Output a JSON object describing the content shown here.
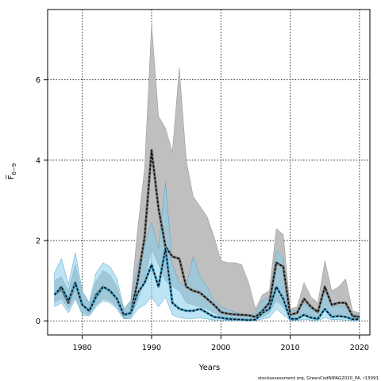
{
  "chart_data": {
    "type": "line",
    "title": "",
    "xlabel": "Years",
    "ylabel": "F̅ 6−9",
    "xlim": [
      1975,
      2021.5
    ],
    "ylim": [
      -0.35,
      7.75
    ],
    "x_ticks": [
      1980,
      1990,
      2000,
      2010,
      2020
    ],
    "y_ticks": [
      0,
      2,
      4,
      6
    ],
    "grid": true,
    "legend": "none",
    "credit": "stockassessment.org, GreenCodNIPAG2020_PA, r13091",
    "colors": {
      "grey_band": "#bfbfbf",
      "grey_band_stroke": "#909090",
      "blue_band": "#87ceeb",
      "blue_band_stroke": "#4fa3c8",
      "grey_line": "#000000",
      "blue_line": "#000000",
      "grid": "#000000"
    },
    "series": [
      {
        "x": [
          1976,
          1977,
          1978,
          1979,
          1980,
          1981,
          1982,
          1983,
          1984,
          1985,
          1986,
          1987,
          1988,
          1989,
          1990,
          1991,
          1992,
          1993,
          1994,
          1995,
          1996,
          1997,
          1998,
          1999,
          2000,
          2001,
          2002,
          2003,
          2004,
          2005,
          2006,
          2007,
          2008,
          2009,
          2010,
          2011,
          2012,
          2013,
          2014,
          2015,
          2016,
          2017,
          2018,
          2019,
          2020
        ],
        "y": [
          0.65,
          0.8,
          0.45,
          0.95,
          0.4,
          0.25,
          0.65,
          0.85,
          0.75,
          0.55,
          0.15,
          0.2,
          1.0,
          2.1,
          4.25,
          2.8,
          1.85,
          1.6,
          1.55,
          0.85,
          0.75,
          0.7,
          0.55,
          0.4,
          0.22,
          0.18,
          0.16,
          0.15,
          0.14,
          0.1,
          0.25,
          0.45,
          1.45,
          1.35,
          0.15,
          0.2,
          0.55,
          0.35,
          0.22,
          0.85,
          0.4,
          0.45,
          0.45,
          0.12,
          0.1
        ],
        "lower": [
          0.45,
          0.55,
          0.3,
          0.6,
          0.2,
          0.15,
          0.4,
          0.55,
          0.5,
          0.35,
          0.05,
          0.1,
          0.5,
          1.0,
          1.8,
          1.4,
          1.0,
          0.85,
          0.75,
          0.45,
          0.4,
          0.35,
          0.3,
          0.2,
          0.1,
          0.08,
          0.07,
          0.06,
          0.05,
          0.04,
          0.1,
          0.2,
          0.5,
          0.35,
          0.05,
          0.06,
          0.2,
          0.12,
          0.08,
          0.4,
          0.15,
          0.15,
          0.15,
          0.05,
          0.04
        ],
        "upper": [
          1.0,
          1.1,
          0.75,
          1.4,
          0.7,
          0.45,
          1.0,
          1.25,
          1.15,
          0.85,
          0.3,
          0.5,
          2.3,
          3.8,
          7.4,
          5.1,
          4.8,
          4.2,
          6.3,
          4.0,
          3.1,
          2.85,
          2.6,
          2.1,
          1.5,
          1.45,
          1.45,
          1.4,
          0.95,
          0.3,
          0.65,
          0.75,
          2.3,
          2.15,
          0.3,
          0.35,
          0.95,
          0.6,
          0.45,
          1.5,
          0.75,
          0.85,
          1.05,
          0.25,
          0.2
        ]
      },
      {
        "x": [
          1976,
          1977,
          1978,
          1979,
          1980,
          1981,
          1982,
          1983,
          1984,
          1985,
          1986,
          1987,
          1988,
          1989,
          1990,
          1991,
          1992,
          1993,
          1994,
          1995,
          1996,
          1997,
          1998,
          1999,
          2000,
          2001,
          2002,
          2003,
          2004,
          2005,
          2006,
          2007,
          2008,
          2009,
          2010,
          2011,
          2012,
          2013,
          2014,
          2015,
          2016,
          2017,
          2018,
          2019,
          2020
        ],
        "y": [
          0.65,
          0.85,
          0.5,
          0.95,
          0.4,
          0.25,
          0.6,
          0.85,
          0.75,
          0.55,
          0.15,
          0.2,
          0.7,
          0.95,
          1.4,
          0.85,
          1.8,
          0.45,
          0.3,
          0.25,
          0.25,
          0.3,
          0.2,
          0.1,
          0.08,
          0.05,
          0.04,
          0.03,
          0.02,
          0.03,
          0.2,
          0.3,
          0.85,
          0.55,
          0.05,
          0.05,
          0.15,
          0.08,
          0.05,
          0.3,
          0.1,
          0.12,
          0.1,
          0.04,
          0.04
        ],
        "lower": [
          0.35,
          0.45,
          0.2,
          0.55,
          0.15,
          0.12,
          0.35,
          0.5,
          0.45,
          0.3,
          0.05,
          0.05,
          0.3,
          0.4,
          0.6,
          0.35,
          0.6,
          0.15,
          0.08,
          0.06,
          0.06,
          0.07,
          0.05,
          0.02,
          0.02,
          0.01,
          0.01,
          0.01,
          0.005,
          0.005,
          0.05,
          0.08,
          0.3,
          0.15,
          0.01,
          0.01,
          0.04,
          0.02,
          0.01,
          0.08,
          0.03,
          0.03,
          0.02,
          0.01,
          0.01
        ],
        "upper": [
          1.2,
          1.55,
          0.9,
          1.7,
          0.75,
          0.45,
          1.2,
          1.45,
          1.35,
          1.05,
          0.3,
          0.5,
          1.4,
          1.9,
          2.45,
          1.8,
          3.45,
          1.4,
          0.95,
          0.85,
          1.6,
          1.1,
          0.85,
          0.5,
          0.35,
          0.28,
          0.22,
          0.18,
          0.14,
          0.2,
          0.5,
          0.6,
          1.75,
          1.55,
          0.25,
          0.25,
          0.45,
          0.3,
          0.2,
          0.75,
          0.35,
          0.38,
          0.35,
          0.15,
          0.15
        ]
      }
    ]
  }
}
